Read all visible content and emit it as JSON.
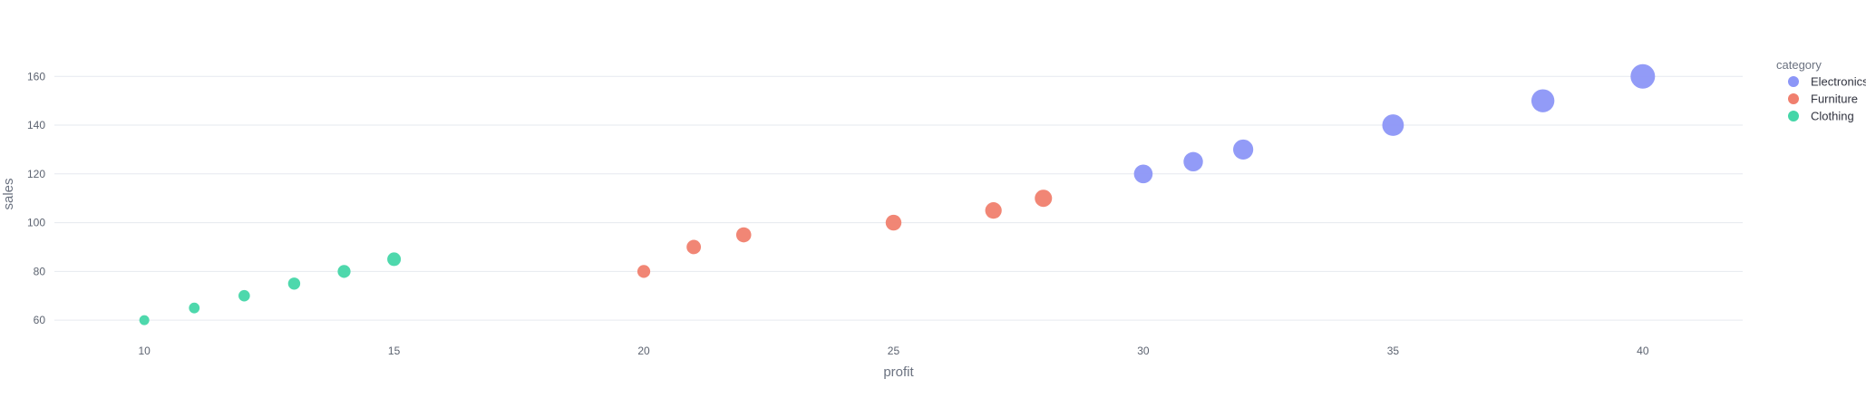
{
  "chart_data": {
    "type": "scatter",
    "xlabel": "profit",
    "ylabel": "sales",
    "xlim": [
      8.2,
      42
    ],
    "ylim": [
      50,
      172
    ],
    "x_ticks": [
      10,
      15,
      20,
      25,
      30,
      35,
      40
    ],
    "y_ticks": [
      60,
      80,
      100,
      120,
      140,
      160
    ],
    "grid": true,
    "legend": {
      "title": "category",
      "placement": "top-right",
      "entries": [
        "Electronics",
        "Furniture",
        "Clothing"
      ]
    },
    "series": [
      {
        "name": "Electronics",
        "color": "#8c96f7",
        "points": [
          {
            "x": 30,
            "y": 120
          },
          {
            "x": 31,
            "y": 125
          },
          {
            "x": 32,
            "y": 130
          },
          {
            "x": 35,
            "y": 140
          },
          {
            "x": 38,
            "y": 150
          },
          {
            "x": 40,
            "y": 160
          }
        ]
      },
      {
        "name": "Furniture",
        "color": "#f07f6e",
        "points": [
          {
            "x": 20,
            "y": 80
          },
          {
            "x": 21,
            "y": 90
          },
          {
            "x": 22,
            "y": 95
          },
          {
            "x": 25,
            "y": 100
          },
          {
            "x": 27,
            "y": 105
          },
          {
            "x": 28,
            "y": 110
          }
        ]
      },
      {
        "name": "Clothing",
        "color": "#45d6a8",
        "points": [
          {
            "x": 10,
            "y": 60
          },
          {
            "x": 11,
            "y": 65
          },
          {
            "x": 12,
            "y": 70
          },
          {
            "x": 13,
            "y": 75
          },
          {
            "x": 14,
            "y": 80
          },
          {
            "x": 15,
            "y": 85
          }
        ]
      }
    ]
  }
}
